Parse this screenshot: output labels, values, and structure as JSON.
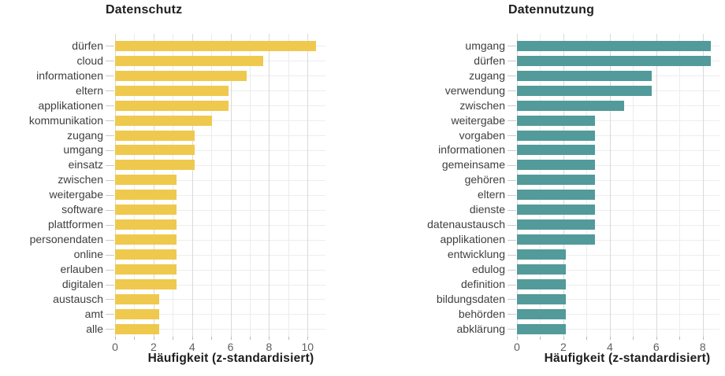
{
  "figure": {
    "background_color": "#ffffff",
    "n_panels": 2
  },
  "colors": {
    "grid_major": "#d9d9d9",
    "grid_minor": "#ececec",
    "grid_row": "#ededed",
    "y_tick": "#c9c9c9",
    "x_tick": "#b9b9b9",
    "category_label_text": "#3e3e3e",
    "tick_label_text": "#5f5f5f",
    "title_text": "#1e1e1e"
  },
  "chart_data": [
    {
      "type": "bar",
      "orientation": "horizontal",
      "title": "Datenschutz",
      "xlabel": "Häufigkeit (z-standardisiert)",
      "bar_color": "#EFC94D",
      "categories": [
        "dürfen",
        "cloud",
        "informationen",
        "eltern",
        "applikationen",
        "kommunikation",
        "zugang",
        "umgang",
        "einsatz",
        "zwischen",
        "weitergabe",
        "software",
        "plattformen",
        "personendaten",
        "online",
        "erlauben",
        "digitalen",
        "austausch",
        "amt",
        "alle"
      ],
      "values": [
        10.45,
        7.7,
        6.85,
        5.9,
        5.9,
        5.05,
        4.15,
        4.15,
        4.15,
        3.2,
        3.2,
        3.2,
        3.2,
        3.2,
        3.2,
        3.2,
        3.2,
        2.3,
        2.3,
        2.3
      ],
      "xlim": [
        0,
        10.93
      ],
      "x_major_ticks": [
        0,
        2,
        4,
        6,
        8,
        10
      ],
      "x_minor_ticks": [
        1,
        3,
        5,
        7,
        9
      ],
      "grid": "vertical major and minor gridlines plus one light horizontal gridline per category row",
      "legend": "none"
    },
    {
      "type": "bar",
      "orientation": "horizontal",
      "title": "Datennutzung",
      "xlabel": "Häufigkeit (z-standardisiert)",
      "bar_color": "#539A9A",
      "categories": [
        "umgang",
        "dürfen",
        "zugang",
        "verwendung",
        "zwischen",
        "weitergabe",
        "vorgaben",
        "informationen",
        "gemeinsame",
        "gehören",
        "eltern",
        "dienste",
        "datenaustausch",
        "applikationen",
        "entwicklung",
        "edulog",
        "definition",
        "bildungsdaten",
        "behörden",
        "abklärung"
      ],
      "values": [
        8.35,
        8.35,
        5.8,
        5.8,
        4.6,
        3.35,
        3.35,
        3.35,
        3.35,
        3.35,
        3.35,
        3.35,
        3.35,
        3.35,
        2.1,
        2.1,
        2.1,
        2.1,
        2.1,
        2.1
      ],
      "xlim": [
        0,
        8.72
      ],
      "x_major_ticks": [
        0,
        2,
        4,
        6,
        8
      ],
      "x_minor_ticks": [
        1,
        3,
        5,
        7
      ],
      "grid": "vertical major and minor gridlines plus one light horizontal gridline per category row",
      "legend": "none"
    }
  ]
}
